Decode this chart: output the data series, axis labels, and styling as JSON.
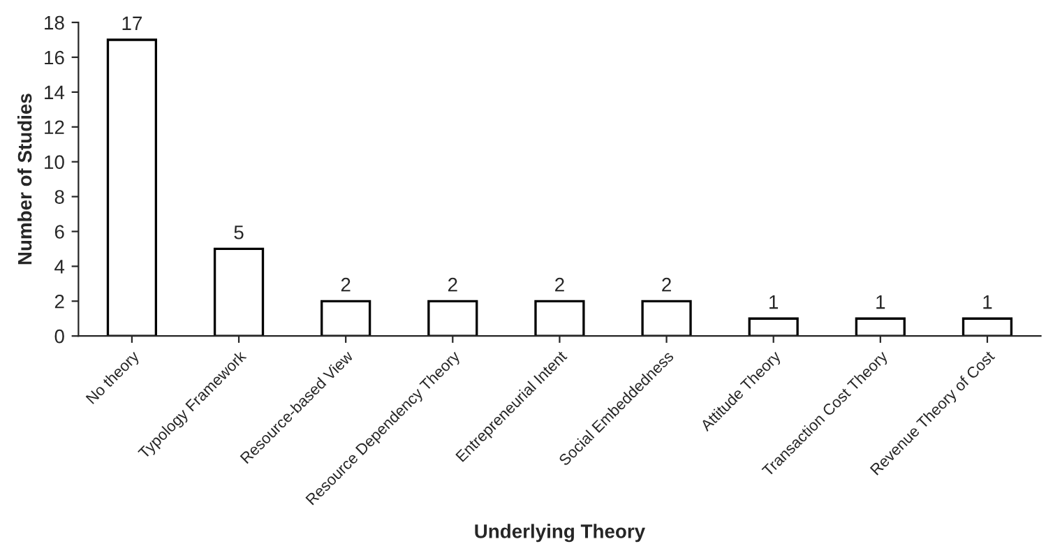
{
  "chart_data": {
    "type": "bar",
    "xlabel": "Underlying Theory",
    "ylabel": "Number of Studies",
    "categories": [
      "No theory",
      "Typology Framework",
      "Resource-based View",
      "Resource Dependency Theory",
      "Entrepreneurial Intent",
      "Social Embeddedness",
      "Attitude Theory",
      "Transaction Cost Theory",
      "Revenue Theory of Cost"
    ],
    "values": [
      17,
      5,
      2,
      2,
      2,
      2,
      1,
      1,
      1
    ],
    "color": "#ffffff",
    "ylim": [
      0,
      18
    ],
    "yticks": [
      0,
      2,
      4,
      6,
      8,
      10,
      12,
      14,
      16,
      18
    ],
    "data_labels": true,
    "grid": false,
    "legend": false
  }
}
